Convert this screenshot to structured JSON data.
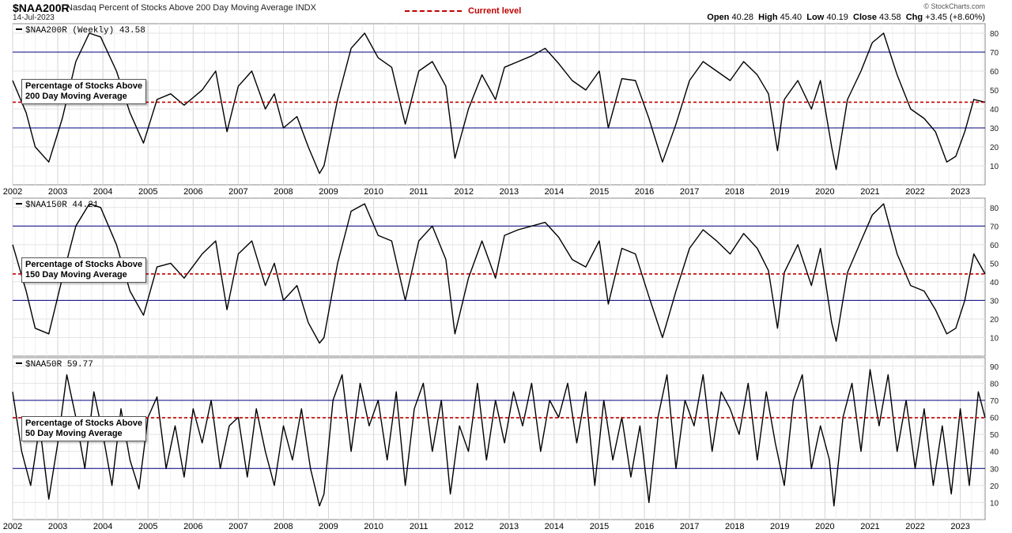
{
  "header": {
    "symbol": "$NAA200R",
    "description": "Nasdaq Percent of Stocks Above 200 Day Moving Average INDX",
    "date": "14-Jul-2023",
    "legend_label": "Current level",
    "copyright": "© StockCharts.com",
    "ohlc": {
      "open_label": "Open",
      "open": "40.28",
      "high_label": "High",
      "high": "45.40",
      "low_label": "Low",
      "low": "40.19",
      "close_label": "Close",
      "close": "43.58",
      "chg_label": "Chg",
      "chg": "+3.45 (+8.60%)"
    }
  },
  "colors": {
    "line": "#000000",
    "current_level": "#c00000",
    "ref_line": "#000080",
    "grid": "#e3e3e3"
  },
  "chart_data": [
    {
      "type": "line",
      "series_label": "$NAA200R (Weekly) 43.58",
      "annotation": [
        "Percentage of Stocks Above",
        "200 Day Moving Average"
      ],
      "ylim": [
        0,
        85
      ],
      "yticks": [
        10,
        20,
        30,
        40,
        50,
        60,
        70,
        80
      ],
      "ref_lines": [
        30,
        70
      ],
      "current_level": 43.58,
      "x_ticks": [
        "2002",
        "2003",
        "2004",
        "2005",
        "2006",
        "2007",
        "2008",
        "2009",
        "2010",
        "2011",
        "2012",
        "2013",
        "2014",
        "2015",
        "2016",
        "2017",
        "2018",
        "2019",
        "2020",
        "2021",
        "2022",
        "2023"
      ],
      "x_start": 2002.0,
      "x_end": 2023.55,
      "x": [
        2002.0,
        2002.3,
        2002.5,
        2002.8,
        2003.1,
        2003.4,
        2003.7,
        2003.95,
        2004.3,
        2004.6,
        2004.9,
        2005.2,
        2005.5,
        2005.8,
        2006.2,
        2006.5,
        2006.75,
        2007.0,
        2007.3,
        2007.6,
        2007.8,
        2008.0,
        2008.3,
        2008.55,
        2008.8,
        2008.9,
        2009.2,
        2009.5,
        2009.8,
        2010.1,
        2010.4,
        2010.7,
        2011.0,
        2011.3,
        2011.6,
        2011.8,
        2012.1,
        2012.4,
        2012.7,
        2012.9,
        2013.2,
        2013.5,
        2013.8,
        2014.1,
        2014.4,
        2014.7,
        2015.0,
        2015.2,
        2015.5,
        2015.8,
        2016.1,
        2016.4,
        2016.7,
        2017.0,
        2017.3,
        2017.6,
        2017.9,
        2018.2,
        2018.5,
        2018.75,
        2018.95,
        2019.1,
        2019.4,
        2019.7,
        2019.9,
        2020.15,
        2020.25,
        2020.5,
        2020.8,
        2021.05,
        2021.3,
        2021.6,
        2021.9,
        2022.2,
        2022.45,
        2022.7,
        2022.9,
        2023.1,
        2023.3,
        2023.55
      ],
      "y": [
        55,
        38,
        20,
        12,
        35,
        65,
        80,
        78,
        60,
        38,
        22,
        45,
        48,
        42,
        50,
        60,
        28,
        52,
        60,
        40,
        48,
        30,
        36,
        20,
        6,
        10,
        45,
        72,
        80,
        67,
        62,
        32,
        60,
        65,
        52,
        14,
        40,
        58,
        45,
        62,
        65,
        68,
        72,
        64,
        55,
        50,
        60,
        30,
        56,
        55,
        35,
        12,
        32,
        55,
        65,
        60,
        55,
        65,
        58,
        48,
        18,
        45,
        55,
        40,
        55,
        20,
        8,
        45,
        60,
        75,
        80,
        58,
        40,
        35,
        28,
        12,
        15,
        28,
        45,
        43.58
      ]
    },
    {
      "type": "line",
      "series_label": "$NAA150R 44.21",
      "annotation": [
        "Percentage of Stocks Above",
        "150 Day Moving Average"
      ],
      "ylim": [
        0,
        85
      ],
      "yticks": [
        10,
        20,
        30,
        40,
        50,
        60,
        70,
        80
      ],
      "ref_lines": [
        30,
        70
      ],
      "current_level": 44.21,
      "x_ticks": [],
      "x_start": 2002.0,
      "x_end": 2023.55,
      "x": [
        2002.0,
        2002.3,
        2002.5,
        2002.8,
        2003.1,
        2003.4,
        2003.7,
        2003.95,
        2004.3,
        2004.6,
        2004.9,
        2005.2,
        2005.5,
        2005.8,
        2006.2,
        2006.5,
        2006.75,
        2007.0,
        2007.3,
        2007.6,
        2007.8,
        2008.0,
        2008.3,
        2008.55,
        2008.8,
        2008.9,
        2009.2,
        2009.5,
        2009.8,
        2010.1,
        2010.4,
        2010.7,
        2011.0,
        2011.3,
        2011.6,
        2011.8,
        2012.1,
        2012.4,
        2012.7,
        2012.9,
        2013.2,
        2013.5,
        2013.8,
        2014.1,
        2014.4,
        2014.7,
        2015.0,
        2015.2,
        2015.5,
        2015.8,
        2016.1,
        2016.4,
        2016.7,
        2017.0,
        2017.3,
        2017.6,
        2017.9,
        2018.2,
        2018.5,
        2018.75,
        2018.95,
        2019.1,
        2019.4,
        2019.7,
        2019.9,
        2020.15,
        2020.25,
        2020.5,
        2020.8,
        2021.05,
        2021.3,
        2021.6,
        2021.9,
        2022.2,
        2022.45,
        2022.7,
        2022.9,
        2023.1,
        2023.3,
        2023.55
      ],
      "y": [
        60,
        35,
        15,
        12,
        42,
        70,
        82,
        80,
        60,
        35,
        22,
        48,
        50,
        42,
        55,
        62,
        25,
        55,
        62,
        38,
        50,
        30,
        38,
        18,
        7,
        10,
        50,
        78,
        82,
        65,
        62,
        30,
        62,
        70,
        52,
        12,
        42,
        62,
        42,
        65,
        68,
        70,
        72,
        64,
        52,
        48,
        62,
        28,
        58,
        55,
        32,
        10,
        35,
        58,
        68,
        62,
        55,
        66,
        58,
        46,
        15,
        45,
        60,
        38,
        58,
        18,
        8,
        45,
        62,
        76,
        82,
        55,
        38,
        35,
        25,
        12,
        15,
        30,
        55,
        44.21
      ]
    },
    {
      "type": "line",
      "series_label": "$NAA50R 59.77",
      "annotation": [
        "Percentage of Stocks Above",
        "50 Day Moving Average"
      ],
      "ylim": [
        0,
        95
      ],
      "yticks": [
        10,
        20,
        30,
        40,
        50,
        60,
        70,
        80,
        90
      ],
      "ref_lines": [
        30,
        70
      ],
      "current_level": 59.77,
      "x_ticks": [
        "2002",
        "2003",
        "2004",
        "2005",
        "2006",
        "2007",
        "2008",
        "2009",
        "2010",
        "2011",
        "2012",
        "2013",
        "2014",
        "2015",
        "2016",
        "2017",
        "2018",
        "2019",
        "2020",
        "2021",
        "2022",
        "2023"
      ],
      "x_start": 2002.0,
      "x_end": 2023.55,
      "x": [
        2002.0,
        2002.2,
        2002.4,
        2002.6,
        2002.8,
        2003.0,
        2003.2,
        2003.4,
        2003.6,
        2003.8,
        2004.0,
        2004.2,
        2004.4,
        2004.6,
        2004.8,
        2005.0,
        2005.2,
        2005.4,
        2005.6,
        2005.8,
        2006.0,
        2006.2,
        2006.4,
        2006.6,
        2006.8,
        2007.0,
        2007.2,
        2007.4,
        2007.6,
        2007.8,
        2008.0,
        2008.2,
        2008.4,
        2008.6,
        2008.8,
        2008.9,
        2009.1,
        2009.3,
        2009.5,
        2009.7,
        2009.9,
        2010.1,
        2010.3,
        2010.5,
        2010.7,
        2010.9,
        2011.1,
        2011.3,
        2011.5,
        2011.7,
        2011.9,
        2012.1,
        2012.3,
        2012.5,
        2012.7,
        2012.9,
        2013.1,
        2013.3,
        2013.5,
        2013.7,
        2013.9,
        2014.1,
        2014.3,
        2014.5,
        2014.7,
        2014.9,
        2015.1,
        2015.3,
        2015.5,
        2015.7,
        2015.9,
        2016.1,
        2016.3,
        2016.5,
        2016.7,
        2016.9,
        2017.1,
        2017.3,
        2017.5,
        2017.7,
        2017.9,
        2018.1,
        2018.3,
        2018.5,
        2018.7,
        2018.9,
        2019.1,
        2019.3,
        2019.5,
        2019.7,
        2019.9,
        2020.1,
        2020.2,
        2020.4,
        2020.6,
        2020.8,
        2021.0,
        2021.2,
        2021.4,
        2021.6,
        2021.8,
        2022.0,
        2022.2,
        2022.4,
        2022.6,
        2022.8,
        2023.0,
        2023.2,
        2023.4,
        2023.55
      ],
      "y": [
        75,
        40,
        20,
        55,
        12,
        45,
        85,
        60,
        30,
        75,
        50,
        20,
        65,
        35,
        18,
        60,
        72,
        30,
        55,
        25,
        65,
        45,
        70,
        30,
        55,
        60,
        25,
        65,
        40,
        20,
        55,
        35,
        65,
        30,
        8,
        15,
        70,
        85,
        40,
        80,
        55,
        70,
        35,
        75,
        20,
        65,
        80,
        40,
        70,
        15,
        55,
        40,
        80,
        35,
        70,
        45,
        75,
        55,
        80,
        40,
        70,
        60,
        80,
        45,
        75,
        20,
        70,
        35,
        60,
        25,
        55,
        10,
        60,
        85,
        30,
        70,
        55,
        85,
        40,
        75,
        65,
        50,
        80,
        35,
        75,
        45,
        20,
        70,
        85,
        30,
        55,
        35,
        8,
        60,
        80,
        40,
        88,
        55,
        85,
        40,
        70,
        30,
        65,
        20,
        55,
        15,
        65,
        20,
        75,
        59.77
      ]
    }
  ]
}
